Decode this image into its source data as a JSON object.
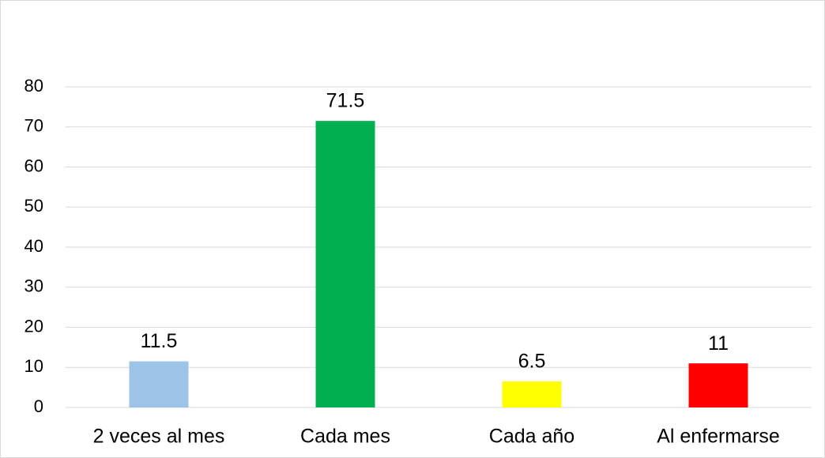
{
  "chart_data": {
    "type": "bar",
    "categories": [
      "2 veces al mes",
      "Cada mes",
      "Cada año",
      "Al enfermarse"
    ],
    "values": [
      11.5,
      71.5,
      6.5,
      11
    ],
    "colors": [
      "#9dc3e6",
      "#00b050",
      "#ffff00",
      "#ff0000"
    ],
    "ylim": [
      0,
      80
    ],
    "yticks": [
      0,
      10,
      20,
      30,
      40,
      50,
      60,
      70,
      80
    ],
    "grid": true
  }
}
